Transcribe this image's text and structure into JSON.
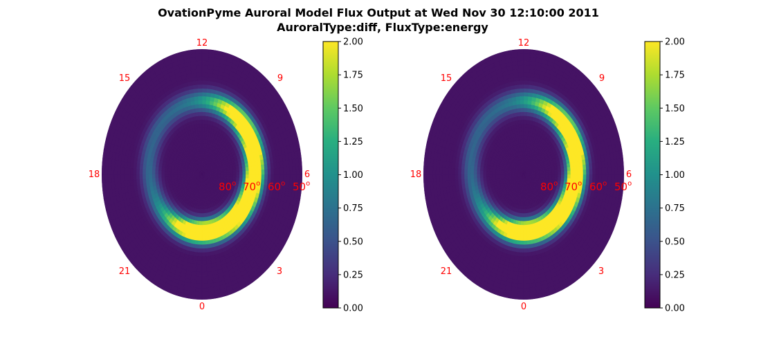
{
  "chart_data": {
    "type": "heatmap",
    "projection": "polar",
    "title_line1": "OvationPyme Auroral Model Flux Output at Wed Nov 30 12:10:00 2011",
    "title_line2": "AuroralType:diff, FluxType:energy",
    "mlt_labels": [
      "12",
      "15",
      "9",
      "18",
      "6",
      "21",
      "3",
      "0"
    ],
    "latitude_labels": [
      "80",
      "70",
      "60",
      "50"
    ],
    "latitude_unit": "o",
    "colorbar": {
      "colormap": "viridis",
      "range": [
        0,
        2
      ],
      "ticks": [
        "0.00",
        "0.25",
        "0.50",
        "0.75",
        "1.00",
        "1.25",
        "1.50",
        "1.75",
        "2.00"
      ]
    },
    "panels": [
      {
        "name": "left",
        "oval": {
          "peak_flux": 2.0,
          "peak_mlt_range": [
            0.7,
            7.5
          ],
          "oval_colatitude_deg": 21,
          "background_flux": 0.1
        }
      },
      {
        "name": "right",
        "oval": {
          "peak_flux": 2.0,
          "peak_mlt_range": [
            0.7,
            7.5
          ],
          "oval_colatitude_deg": 21,
          "background_flux": 0.1
        }
      }
    ]
  }
}
